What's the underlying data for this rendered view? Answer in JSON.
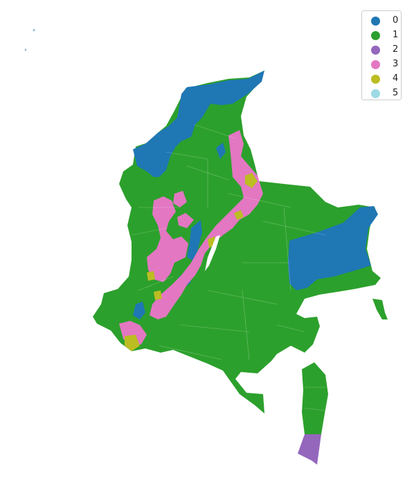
{
  "map": {
    "legend_title": "",
    "classes": [
      {
        "label": "0",
        "color": "#1f77b4"
      },
      {
        "label": "1",
        "color": "#2ca02c"
      },
      {
        "label": "2",
        "color": "#9467bd"
      },
      {
        "label": "3",
        "color": "#e377c2"
      },
      {
        "label": "4",
        "color": "#bcbd22"
      },
      {
        "label": "5",
        "color": "#9edae5"
      }
    ],
    "legend_position": "top-right",
    "axes_visible": false
  }
}
